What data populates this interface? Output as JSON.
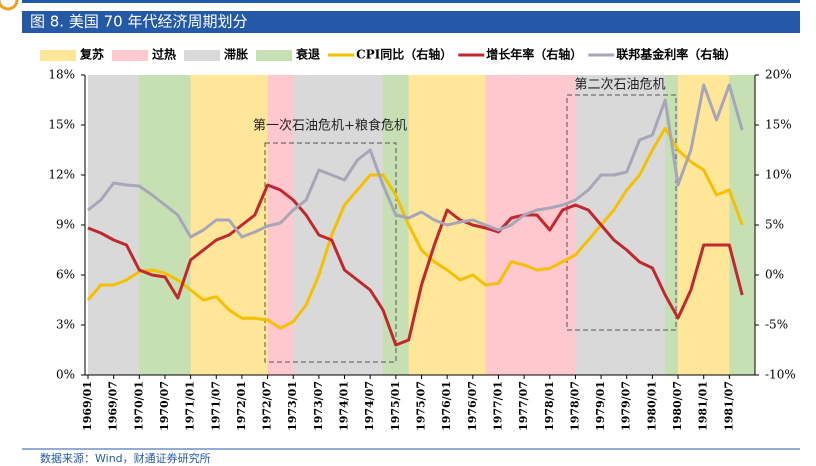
{
  "chart_data": {
    "type": "line",
    "title": "图 8. 美国 70 年代经济周期划分",
    "source": "数据来源：Wind，财通证券研究所",
    "annotations": [
      "第一次石油危机+粮食危机",
      "第二次石油危机"
    ],
    "categories": [
      "1969/01",
      null,
      "1969/07",
      null,
      "1970/01",
      null,
      "1970/07",
      null,
      "1971/01",
      null,
      "1971/07",
      null,
      "1972/01",
      null,
      "1972/07",
      null,
      "1973/01",
      null,
      "1973/07",
      null,
      "1974/01",
      null,
      "1974/07",
      null,
      "1975/01",
      null,
      "1975/07",
      null,
      "1976/01",
      null,
      "1976/07",
      null,
      "1977/01",
      null,
      "1977/07",
      null,
      "1978/01",
      null,
      "1978/07",
      null,
      "1979/01",
      null,
      "1979/07",
      null,
      "1980/01",
      null,
      "1980/07",
      null,
      "1981/01",
      null,
      "1981/07",
      null
    ],
    "phase_legend": [
      {
        "name": "复苏",
        "color": "#ffe699"
      },
      {
        "name": "过热",
        "color": "#ffc7ce"
      },
      {
        "name": "滞胀",
        "color": "#d9d9d9"
      },
      {
        "name": "衰退",
        "color": "#c6e0b4"
      }
    ],
    "phases": [
      "滞胀",
      "滞胀",
      "滞胀",
      "滞胀",
      "衰退",
      "衰退",
      "衰退",
      "衰退",
      "复苏",
      "复苏",
      "复苏",
      "复苏",
      "复苏",
      "复苏",
      "过热",
      "过热",
      "滞胀",
      "滞胀",
      "滞胀",
      "滞胀",
      "滞胀",
      "滞胀",
      "滞胀",
      "衰退",
      "衰退",
      "复苏",
      "复苏",
      "复苏",
      "复苏",
      "复苏",
      "复苏",
      "过热",
      "过热",
      "过热",
      "过热",
      "过热",
      "过热",
      "过热",
      "滞胀",
      "滞胀",
      "滞胀",
      "滞胀",
      "滞胀",
      "滞胀",
      "滞胀",
      "衰退",
      "复苏",
      "复苏",
      "复苏",
      "复苏",
      "衰退",
      "衰退"
    ],
    "series": [
      {
        "name": "CPI同比（右轴）",
        "color": "#f5c000",
        "axis": "y",
        "values": [
          4.5,
          5.4,
          5.4,
          5.7,
          6.2,
          6.3,
          6.1,
          5.7,
          5.1,
          4.5,
          4.7,
          3.9,
          3.4,
          3.4,
          3.3,
          2.8,
          3.2,
          4.2,
          6.0,
          8.4,
          10.2,
          11.1,
          12.0,
          12.0,
          10.8,
          9.0,
          7.5,
          6.8,
          6.3,
          5.7,
          6.0,
          5.4,
          5.5,
          6.8,
          6.6,
          6.3,
          6.4,
          6.8,
          7.2,
          8.1,
          9.0,
          9.9,
          11.1,
          12.0,
          13.5,
          14.8,
          13.5,
          12.8,
          12.3,
          10.8,
          11.1,
          9.0
        ]
      },
      {
        "name": "增长年率（右轴）",
        "color": "#c0282d",
        "axis": "y2",
        "values": [
          4.7,
          4.2,
          3.5,
          3.0,
          0.5,
          0,
          -0.2,
          -2.3,
          1.5,
          2.5,
          3.5,
          4.0,
          5.0,
          6.0,
          9.0,
          8.5,
          7.5,
          6.0,
          4.0,
          3.5,
          0.5,
          -0.5,
          -1.5,
          -3.5,
          -7.0,
          -6.5,
          -1.0,
          3.0,
          6.5,
          5.5,
          5.0,
          4.7,
          4.3,
          5.7,
          6.0,
          6.0,
          4.5,
          6.5,
          7.0,
          6.5,
          5.0,
          3.5,
          2.5,
          1.3,
          0.7,
          -2.0,
          -4.3,
          -1.5,
          3.0,
          3.0,
          3.0,
          -2.0
        ]
      },
      {
        "name": "联邦基金利率（右轴）",
        "color": "#a6a6b8",
        "axis": "y2",
        "values": [
          6.5,
          7.5,
          9.2,
          9.0,
          8.9,
          8.0,
          7.0,
          6.0,
          3.8,
          4.5,
          5.5,
          5.5,
          3.8,
          4.3,
          4.9,
          5.2,
          6.5,
          7.5,
          10.5,
          10.0,
          9.5,
          11.5,
          12.5,
          9.0,
          6.0,
          5.7,
          6.3,
          5.5,
          5.0,
          5.3,
          5.5,
          5.0,
          4.5,
          5.0,
          6.0,
          6.5,
          6.7,
          7.0,
          7.5,
          8.5,
          10.0,
          10.0,
          10.3,
          13.5,
          14.0,
          17.5,
          9.0,
          12.5,
          19.0,
          15.5,
          19.0,
          14.5
        ]
      }
    ],
    "ylim": [
      0,
      18
    ],
    "yticks": [
      {
        "value": 0,
        "label": "0%"
      },
      {
        "value": 3,
        "label": "3%"
      },
      {
        "value": 6,
        "label": "6%"
      },
      {
        "value": 9,
        "label": "9%"
      },
      {
        "value": 12,
        "label": "12%"
      },
      {
        "value": 15,
        "label": "15%"
      },
      {
        "value": 18,
        "label": "18%"
      }
    ],
    "y2lim": [
      -10,
      20
    ],
    "y2ticks": [
      {
        "value": -10,
        "label": "-10%"
      },
      {
        "value": -5,
        "label": "-5%"
      },
      {
        "value": 0,
        "label": "0%"
      },
      {
        "value": 5,
        "label": "5%"
      },
      {
        "value": 10,
        "label": "10%"
      },
      {
        "value": 15,
        "label": "15%"
      },
      {
        "value": 20,
        "label": "20%"
      }
    ]
  }
}
